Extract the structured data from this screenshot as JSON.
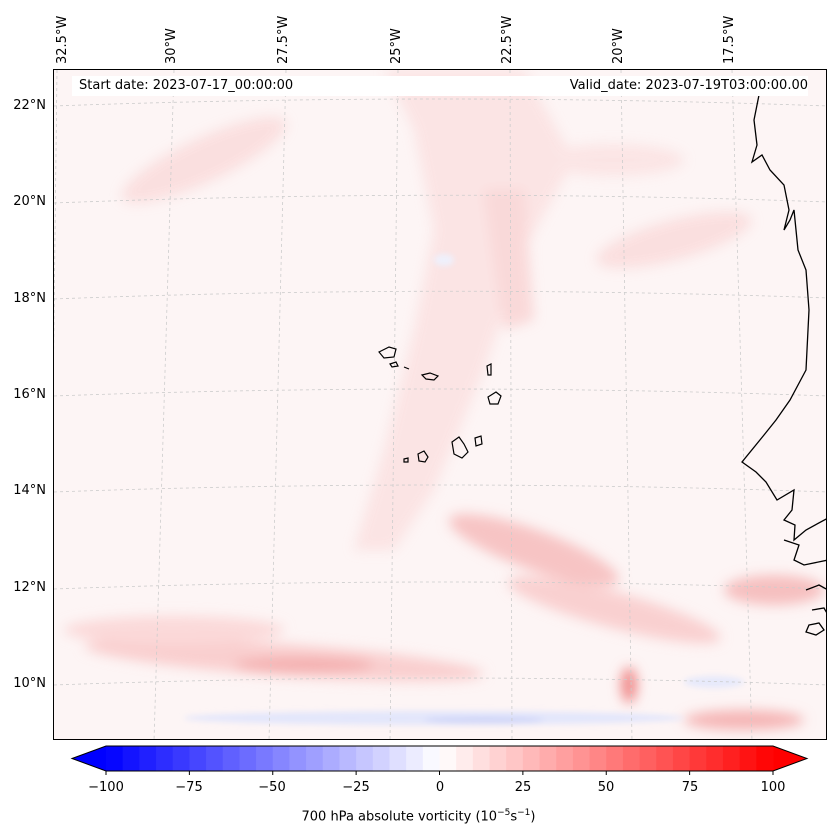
{
  "header": {
    "start_date": "Start date: 2023-07-17_00:00:00",
    "valid_date": "Valid_date: 2023-07-19T03:00:00.00"
  },
  "lon_labels": [
    "32.5°W",
    "30°W",
    "27.5°W",
    "25°W",
    "22.5°W",
    "20°W",
    "17.5°W"
  ],
  "lat_labels": [
    "22°N",
    "20°N",
    "18°N",
    "16°N",
    "14°N",
    "12°N",
    "10°N"
  ],
  "colorbar": {
    "title_prefix": "700 hPa absolute vorticity (10",
    "title_exp1": "−5",
    "title_mid": "s",
    "title_exp2": "−1",
    "title_suffix": ")",
    "ticks": [
      "−100",
      "−75",
      "−50",
      "−25",
      "0",
      "25",
      "50",
      "75",
      "100"
    ],
    "range": [
      -100,
      100
    ],
    "extend": "both",
    "cmap": "bwr",
    "min_color": "#0000ff",
    "mid_color": "#ffffff",
    "max_color": "#ff0000"
  },
  "map": {
    "projection": "Lambert conformal",
    "lon_range": [
      "32.5°W",
      "16°W"
    ],
    "lat_range": [
      "9°N",
      "22.8°N"
    ],
    "gridlines": true,
    "ocean_fill": "#fdf5f5",
    "coast_color": "#000000"
  }
}
